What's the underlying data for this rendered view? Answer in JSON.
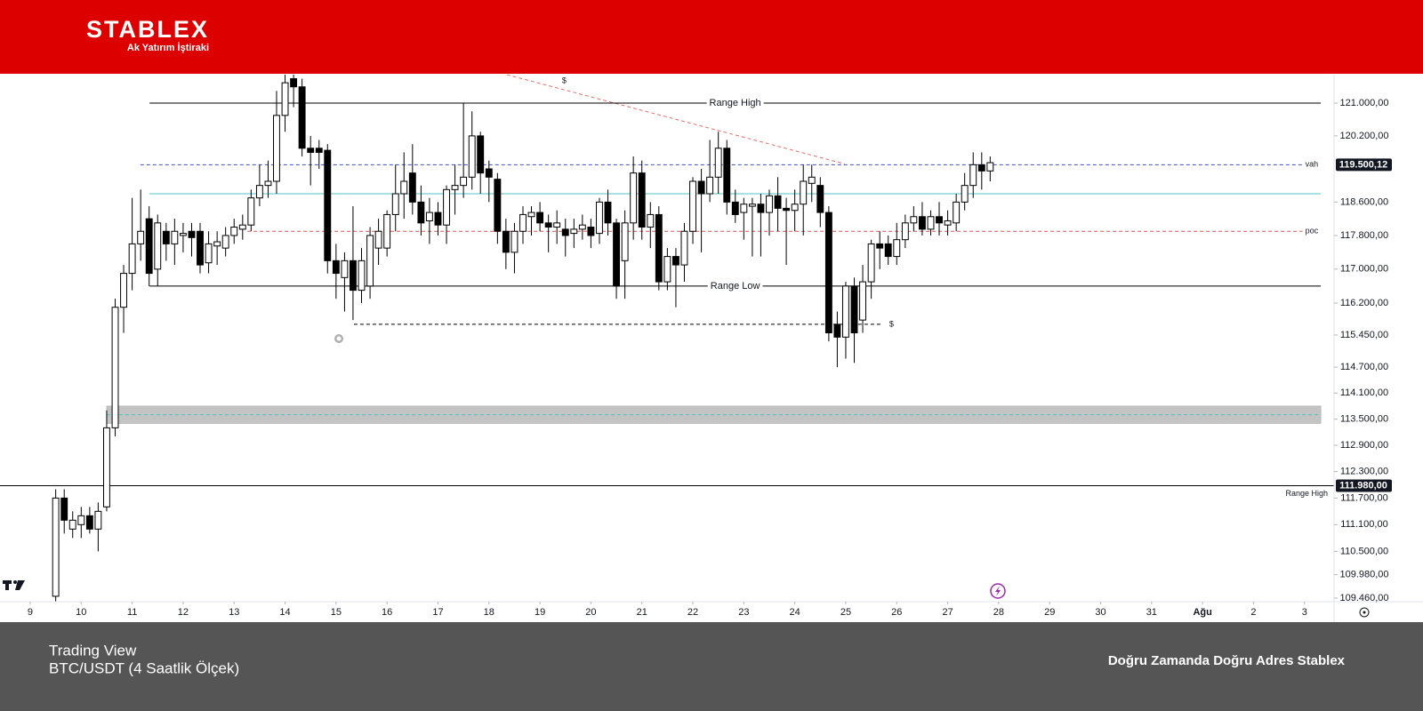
{
  "header": {
    "brand": "STABLEX",
    "tagline": "Ak Yatırım İştiraki"
  },
  "footer": {
    "line1": "Trading View",
    "line2": "BTC/USDT (4 Saatlik Ölçek)",
    "slogan": "Doğru Zamanda Doğru Adres Stablex"
  },
  "chart_data": {
    "type": "candlestick",
    "log_scale": true,
    "up_color": "#ffffff",
    "down_color": "#000000",
    "xlim": [
      8.407,
      34.58
    ],
    "ylim": [
      109380,
      121700
    ],
    "xticks": [
      9,
      10,
      11,
      12,
      13,
      14,
      15,
      16,
      17,
      18,
      19,
      20,
      21,
      22,
      23,
      24,
      25,
      26,
      27,
      28,
      29,
      30,
      31,
      {
        "value": 32,
        "label": "Ağu"
      },
      {
        "value": 33,
        "label": "2"
      },
      {
        "value": 34,
        "label": "3"
      }
    ],
    "yticks": [
      {
        "value": 121000,
        "label": "121.000,00"
      },
      {
        "value": 120200,
        "label": "120.200,00"
      },
      {
        "value": 118600,
        "label": "118.600,00"
      },
      {
        "value": 117800,
        "label": "117.800,00"
      },
      {
        "value": 117000,
        "label": "117.000,00"
      },
      {
        "value": 116200,
        "label": "116.200,00"
      },
      {
        "value": 115450,
        "label": "115.450,00"
      },
      {
        "value": 114700,
        "label": "114.700,00"
      },
      {
        "value": 114100,
        "label": "114.100,00"
      },
      {
        "value": 113500,
        "label": "113.500,00"
      },
      {
        "value": 112900,
        "label": "112.900,00"
      },
      {
        "value": 112300,
        "label": "112.300,00"
      },
      {
        "value": 111700,
        "label": "111.700,00"
      },
      {
        "value": 111100,
        "label": "111.100,00"
      },
      {
        "value": 110500,
        "label": "110.500,00"
      },
      {
        "value": 109980,
        "label": "109.980,00"
      },
      {
        "value": 109460,
        "label": "109.460,00"
      }
    ],
    "x": [
      9.5,
      9.667,
      9.833,
      10,
      10.167,
      10.333,
      10.5,
      10.667,
      10.833,
      11,
      11.167,
      11.333,
      11.5,
      11.667,
      11.833,
      12,
      12.167,
      12.333,
      12.5,
      12.667,
      12.833,
      13,
      13.167,
      13.333,
      13.5,
      13.667,
      13.833,
      14,
      14.167,
      14.333,
      14.5,
      14.667,
      14.833,
      15,
      15.167,
      15.333,
      15.5,
      15.667,
      15.833,
      16,
      16.167,
      16.333,
      16.5,
      16.667,
      16.833,
      17,
      17.167,
      17.333,
      17.5,
      17.667,
      17.833,
      18,
      18.167,
      18.333,
      18.5,
      18.667,
      18.833,
      19,
      19.167,
      19.333,
      19.5,
      19.667,
      19.833,
      20,
      20.167,
      20.333,
      20.5,
      20.667,
      20.833,
      21,
      21.167,
      21.333,
      21.5,
      21.667,
      21.833,
      22,
      22.167,
      22.333,
      22.5,
      22.667,
      22.833,
      23,
      23.167,
      23.333,
      23.5,
      23.667,
      23.833,
      24,
      24.167,
      24.333,
      24.5,
      24.667,
      24.833,
      25,
      25.167,
      25.333,
      25.5,
      25.667,
      25.833,
      26,
      26.167,
      26.333,
      26.5,
      26.667,
      26.833,
      27,
      27.167,
      27.333,
      27.5,
      27.667,
      27.833
    ],
    "open": [
      109500,
      111700,
      111000,
      111100,
      111300,
      111000,
      111500,
      113300,
      116100,
      116900,
      117600,
      118200,
      117000,
      117900,
      117600,
      117800,
      117900,
      117900,
      117150,
      117550,
      117500,
      117800,
      117950,
      118050,
      118700,
      119000,
      119100,
      120700,
      121600,
      121400,
      119900,
      119900,
      119850,
      117200,
      116800,
      117200,
      116500,
      116600,
      117500,
      117500,
      118300,
      118800,
      119300,
      118600,
      118150,
      118350,
      118050,
      118900,
      119000,
      119200,
      120200,
      119400,
      119150,
      117900,
      117400,
      117900,
      118250,
      118350,
      118100,
      118000,
      117950,
      117850,
      117950,
      118000,
      117850,
      118600,
      118100,
      117200,
      118100,
      119300,
      118000,
      118300,
      116700,
      117300,
      117100,
      117900,
      119100,
      118800,
      119200,
      119900,
      118600,
      118350,
      118500,
      118550,
      118350,
      118750,
      118450,
      118400,
      118550,
      119050,
      119000,
      118350,
      115700,
      115400,
      116600,
      115800,
      116700,
      117600,
      117600,
      117300,
      117700,
      118100,
      118250,
      117950,
      118250,
      118050,
      118100,
      118600,
      119000,
      119500,
      119350
    ],
    "high": [
      111900,
      111900,
      111400,
      111500,
      111500,
      111600,
      113700,
      116300,
      117100,
      118700,
      118900,
      118500,
      118300,
      118100,
      118200,
      118100,
      118100,
      118100,
      117900,
      117900,
      118000,
      118200,
      118300,
      118900,
      119500,
      119600,
      121300,
      121700,
      121700,
      121600,
      120200,
      120100,
      120000,
      117600,
      117400,
      118500,
      117500,
      118000,
      118200,
      118400,
      119500,
      119800,
      120000,
      119000,
      118700,
      118600,
      119000,
      119500,
      121000,
      120800,
      120300,
      119600,
      119300,
      118200,
      118100,
      118500,
      118500,
      118600,
      118300,
      118400,
      118200,
      118200,
      118300,
      118200,
      118700,
      118900,
      118200,
      118400,
      119700,
      119600,
      118600,
      118500,
      117500,
      117500,
      118100,
      119200,
      119400,
      120100,
      120300,
      120100,
      118900,
      118700,
      118700,
      118800,
      118900,
      119200,
      118700,
      118900,
      119500,
      119500,
      119200,
      118500,
      116000,
      116700,
      116800,
      117100,
      117700,
      117900,
      117800,
      118100,
      118300,
      118500,
      118600,
      118400,
      118600,
      118400,
      118800,
      119300,
      119800,
      119800,
      119700
    ],
    "low": [
      109000,
      110900,
      110800,
      110800,
      110900,
      110500,
      111400,
      113100,
      115500,
      116500,
      117200,
      116600,
      116600,
      117200,
      117100,
      117400,
      117300,
      116900,
      116900,
      117100,
      117300,
      117600,
      117700,
      117900,
      118500,
      118700,
      118800,
      120300,
      120900,
      119700,
      119000,
      119400,
      116900,
      116300,
      116000,
      115800,
      116200,
      116300,
      117100,
      117300,
      117900,
      118200,
      118300,
      117800,
      117600,
      117800,
      117600,
      118300,
      118700,
      118900,
      118800,
      118600,
      117600,
      117000,
      116900,
      117600,
      117800,
      117900,
      117400,
      117600,
      117300,
      117500,
      117700,
      117500,
      117600,
      117800,
      116300,
      116300,
      117700,
      117700,
      117500,
      116500,
      116500,
      116100,
      116700,
      117600,
      117400,
      118600,
      118800,
      118300,
      118100,
      117700,
      117300,
      117300,
      117800,
      117900,
      117100,
      117900,
      117800,
      118600,
      118000,
      115300,
      114700,
      114900,
      114800,
      115500,
      116300,
      117000,
      117100,
      117100,
      117500,
      117900,
      117800,
      117800,
      117800,
      117800,
      117900,
      118400,
      118700,
      118900,
      119100
    ],
    "close": [
      111700,
      111200,
      111200,
      111300,
      111000,
      111400,
      113300,
      116100,
      116900,
      117600,
      117900,
      116900,
      118100,
      117600,
      117900,
      117850,
      117750,
      117100,
      117600,
      117650,
      117800,
      118000,
      118050,
      118700,
      119000,
      119100,
      120700,
      121500,
      121400,
      119900,
      119800,
      119800,
      117200,
      116900,
      117200,
      116500,
      117200,
      117800,
      117900,
      118300,
      118800,
      119100,
      118600,
      118100,
      118350,
      118050,
      118900,
      119000,
      119200,
      120200,
      119300,
      119200,
      117900,
      117400,
      117900,
      118300,
      118350,
      118100,
      118000,
      118100,
      117800,
      117950,
      118050,
      117800,
      118600,
      118100,
      116600,
      118100,
      119300,
      118000,
      118300,
      116700,
      117300,
      117100,
      117900,
      119100,
      118800,
      119200,
      119900,
      118600,
      118300,
      118550,
      118550,
      118350,
      118750,
      118450,
      118400,
      118550,
      119100,
      119200,
      118350,
      115500,
      115400,
      116600,
      115500,
      116700,
      117600,
      117500,
      117300,
      117700,
      118100,
      118250,
      117950,
      118250,
      118100,
      118150,
      118600,
      119000,
      119500,
      119350,
      119550
    ],
    "zone": {
      "low": 113400,
      "high": 113800,
      "x": [
        10.5,
        34.32
      ],
      "color": "#c4c4c4"
    },
    "levels": [
      {
        "text": "Range High",
        "value": 121000,
        "x": [
          11.34,
          34.32
        ],
        "color": "#000000",
        "dash": "none",
        "label_at": "middle"
      },
      {
        "text": "Range Low",
        "value": 116600,
        "x": [
          11.34,
          34.32
        ],
        "color": "#000000",
        "dash": "none",
        "label_at": "middle"
      },
      {
        "text": "vah",
        "value": 119500.12,
        "tag": "119.500,12",
        "x": [
          11.16,
          34.32
        ],
        "color": "#3f51b5",
        "dash": "dashed",
        "label_at": "end"
      },
      {
        "text": "poc",
        "value": 117900,
        "x": [
          13.26,
          34.32
        ],
        "color": "#e05050",
        "dash": "dashed",
        "label_at": "end"
      },
      {
        "value": 118800,
        "x": [
          11.34,
          34.32
        ],
        "color": "#4fc3c3",
        "dash": "none"
      },
      {
        "text": "$",
        "value": 115700,
        "x": [
          15.35,
          25.68
        ],
        "color": "#000000",
        "dash": "dashed",
        "label_at": "after"
      },
      {
        "text": "Range High",
        "value": 111980,
        "tag": "111.980,00",
        "color": "#000000",
        "dash": "none",
        "label_at": "below-end"
      },
      {
        "value": 113600,
        "x": [
          10.5,
          34.32
        ],
        "color": "#4fc3c3",
        "dash": "dashed"
      }
    ],
    "trendline": {
      "x": [
        18.35,
        24.98
      ],
      "y": [
        121700,
        119520
      ],
      "text": "$",
      "color": "#e07070"
    }
  }
}
